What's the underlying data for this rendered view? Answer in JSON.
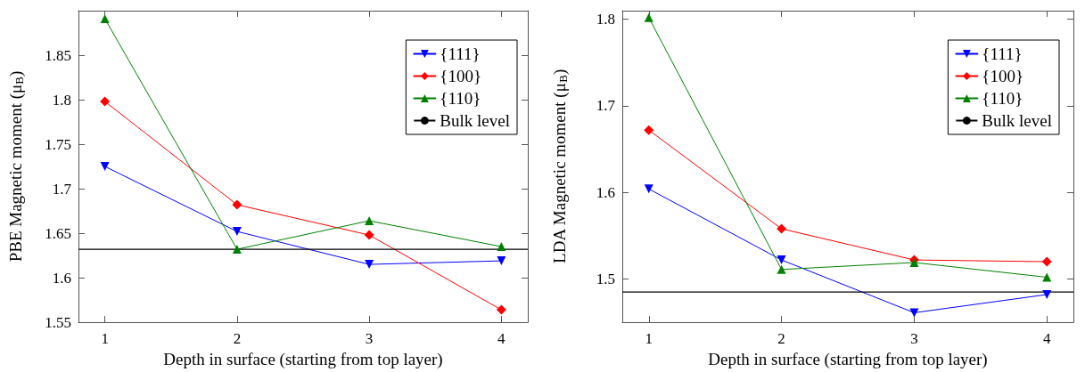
{
  "chart_data": [
    {
      "type": "line",
      "xlabel": "Depth in surface (starting from top layer)",
      "ylabel": "PBE Magnetic moment (μ$_{B}$)",
      "x": [
        1,
        2,
        3,
        4
      ],
      "xlim": [
        0.8,
        4.2
      ],
      "xticks": [
        1,
        2,
        3,
        4
      ],
      "ylim": [
        1.55,
        1.9
      ],
      "yticks": [
        1.55,
        1.6,
        1.65,
        1.7,
        1.75,
        1.8,
        1.85
      ],
      "grid": false,
      "legend": "top right",
      "line_style": "solid",
      "series": [
        {
          "name": "{111}",
          "color": "#0000ff",
          "marker": "triangle-down",
          "values": [
            1.725,
            1.652,
            1.615,
            1.619
          ]
        },
        {
          "name": "{100}",
          "color": "#ff0000",
          "marker": "diamond",
          "values": [
            1.798,
            1.682,
            1.648,
            1.564
          ]
        },
        {
          "name": "{110}",
          "color": "#008000",
          "marker": "triangle",
          "values": [
            1.891,
            1.632,
            1.664,
            1.635
          ]
        }
      ],
      "ref_lines": [
        {
          "axis": "y",
          "value": 1.632,
          "label": "Bulk level",
          "color": "#000000"
        }
      ]
    },
    {
      "type": "line",
      "xlabel": "Depth in surface (starting from top layer)",
      "ylabel": "LDA Magnetic moment (μ$_{B}$)",
      "x": [
        1,
        2,
        3,
        4
      ],
      "xlim": [
        0.8,
        4.2
      ],
      "xticks": [
        1,
        2,
        3,
        4
      ],
      "ylim": [
        1.45,
        1.81
      ],
      "yticks": [
        1.5,
        1.6,
        1.7,
        1.8
      ],
      "grid": false,
      "legend": "top right",
      "line_style": "solid",
      "series": [
        {
          "name": "{111}",
          "color": "#0000ff",
          "marker": "triangle-down",
          "values": [
            1.604,
            1.522,
            1.461,
            1.482
          ]
        },
        {
          "name": "{100}",
          "color": "#ff0000",
          "marker": "diamond",
          "values": [
            1.672,
            1.558,
            1.522,
            1.52
          ]
        },
        {
          "name": "{110}",
          "color": "#008000",
          "marker": "triangle",
          "values": [
            1.802,
            1.511,
            1.519,
            1.502
          ]
        }
      ],
      "ref_lines": [
        {
          "axis": "y",
          "value": 1.485,
          "label": "Bulk level",
          "color": "#000000"
        }
      ]
    }
  ]
}
